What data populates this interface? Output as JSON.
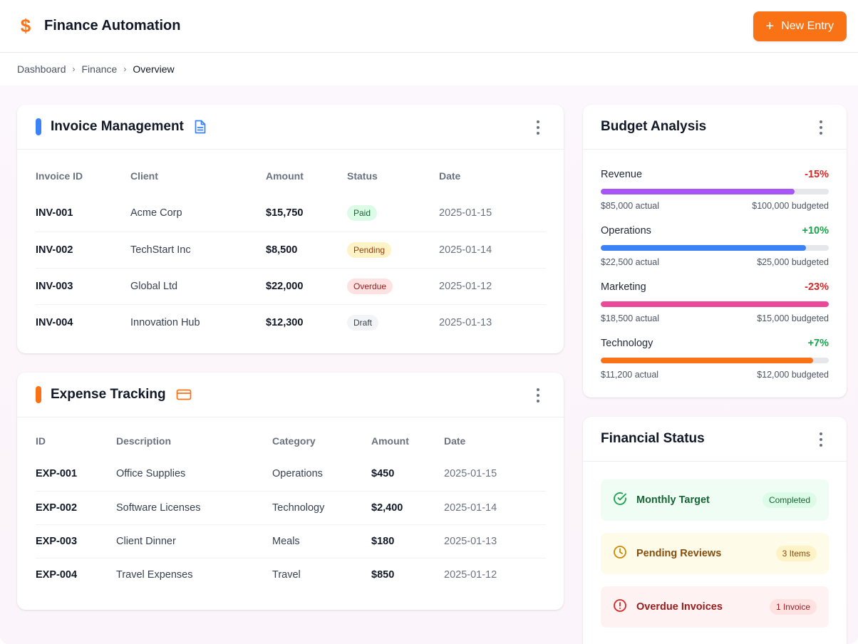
{
  "header": {
    "brand_icon": "dollar-icon",
    "title": "Finance Automation",
    "new_entry_label": "New Entry"
  },
  "breadcrumb": [
    "Dashboard",
    "Finance",
    "Overview"
  ],
  "invoices": {
    "title": "Invoice Management",
    "accent_color": "#3b82f6",
    "icon": "document-icon",
    "columns": [
      "Invoice ID",
      "Client",
      "Amount",
      "Status",
      "Date"
    ],
    "rows": [
      {
        "id": "INV-001",
        "client": "Acme Corp",
        "amount": "$15,750",
        "status": "Paid",
        "date": "2025-01-15"
      },
      {
        "id": "INV-002",
        "client": "TechStart Inc",
        "amount": "$8,500",
        "status": "Pending",
        "date": "2025-01-14"
      },
      {
        "id": "INV-003",
        "client": "Global Ltd",
        "amount": "$22,000",
        "status": "Overdue",
        "date": "2025-01-12"
      },
      {
        "id": "INV-004",
        "client": "Innovation Hub",
        "amount": "$12,300",
        "status": "Draft",
        "date": "2025-01-13"
      }
    ]
  },
  "expenses": {
    "title": "Expense Tracking",
    "accent_color": "#f97316",
    "icon": "credit-card-icon",
    "columns": [
      "ID",
      "Description",
      "Category",
      "Amount",
      "Date"
    ],
    "rows": [
      {
        "id": "EXP-001",
        "description": "Office Supplies",
        "category": "Operations",
        "amount": "$450",
        "date": "2025-01-15"
      },
      {
        "id": "EXP-002",
        "description": "Software Licenses",
        "category": "Technology",
        "amount": "$2,400",
        "date": "2025-01-14"
      },
      {
        "id": "EXP-003",
        "description": "Client Dinner",
        "category": "Meals",
        "amount": "$180",
        "date": "2025-01-13"
      },
      {
        "id": "EXP-004",
        "description": "Travel Expenses",
        "category": "Travel",
        "amount": "$850",
        "date": "2025-01-12"
      }
    ]
  },
  "budget": {
    "title": "Budget Analysis",
    "items": [
      {
        "name": "Revenue",
        "pct": "-15%",
        "pct_color": "#dc2626",
        "bar_color": "#a855f7",
        "progress": 0.85,
        "actual": "$85,000 actual",
        "budgeted": "$100,000 budgeted"
      },
      {
        "name": "Operations",
        "pct": "+10%",
        "pct_color": "#16a34a",
        "bar_color": "#3b82f6",
        "progress": 0.9,
        "actual": "$22,500 actual",
        "budgeted": "$25,000 budgeted"
      },
      {
        "name": "Marketing",
        "pct": "-23%",
        "pct_color": "#dc2626",
        "bar_color": "#ec4899",
        "progress": 1.0,
        "actual": "$18,500 actual",
        "budgeted": "$15,000 budgeted"
      },
      {
        "name": "Technology",
        "pct": "+7%",
        "pct_color": "#16a34a",
        "bar_color": "#f97316",
        "progress": 0.93,
        "actual": "$11,200 actual",
        "budgeted": "$12,000 budgeted"
      }
    ]
  },
  "status": {
    "title": "Financial Status",
    "items": [
      {
        "label": "Monthly Target",
        "badge": "Completed",
        "icon": "check-circle-icon"
      },
      {
        "label": "Pending Reviews",
        "badge": "3 Items",
        "icon": "clock-icon"
      },
      {
        "label": "Overdue Invoices",
        "badge": "1 Invoice",
        "icon": "alert-circle-icon"
      }
    ]
  }
}
